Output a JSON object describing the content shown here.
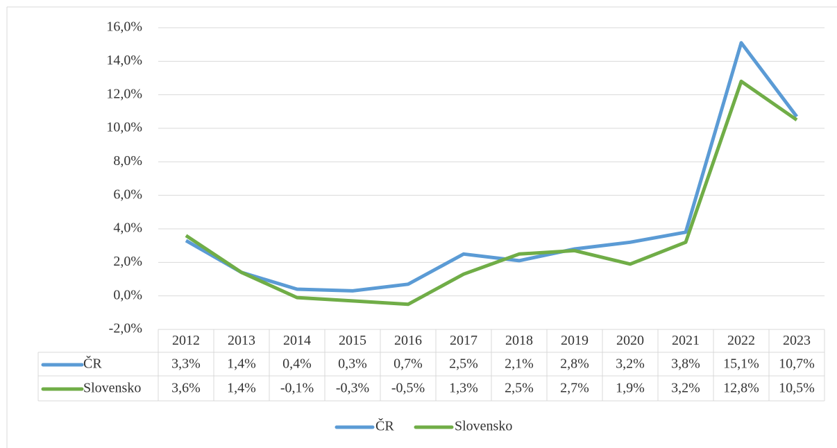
{
  "chart_data": {
    "type": "line",
    "categories": [
      "2012",
      "2013",
      "2014",
      "2015",
      "2016",
      "2017",
      "2018",
      "2019",
      "2020",
      "2021",
      "2022",
      "2023"
    ],
    "series": [
      {
        "name": "ČR",
        "color": "#5b9bd5",
        "values": [
          3.3,
          1.4,
          0.4,
          0.3,
          0.7,
          2.5,
          2.1,
          2.8,
          3.2,
          3.8,
          15.1,
          10.7
        ],
        "value_labels": [
          "3,3%",
          "1,4%",
          "0,4%",
          "0,3%",
          "0,7%",
          "2,5%",
          "2,1%",
          "2,8%",
          "3,2%",
          "3,8%",
          "15,1%",
          "10,7%"
        ]
      },
      {
        "name": "Slovensko",
        "color": "#70ad47",
        "values": [
          3.6,
          1.4,
          -0.1,
          -0.3,
          -0.5,
          1.3,
          2.5,
          2.7,
          1.9,
          3.2,
          12.8,
          10.5
        ],
        "value_labels": [
          "3,6%",
          "1,4%",
          "-0,1%",
          "-0,3%",
          "-0,5%",
          "1,3%",
          "2,5%",
          "2,7%",
          "1,9%",
          "3,2%",
          "12,8%",
          "10,5%"
        ]
      }
    ],
    "ylim": [
      -2,
      16
    ],
    "yticks": [
      {
        "value": -2,
        "label": "-2,0%"
      },
      {
        "value": 0,
        "label": "0,0%"
      },
      {
        "value": 2,
        "label": "2,0%"
      },
      {
        "value": 4,
        "label": "4,0%"
      },
      {
        "value": 6,
        "label": "6,0%"
      },
      {
        "value": 8,
        "label": "8,0%"
      },
      {
        "value": 10,
        "label": "10,0%"
      },
      {
        "value": 12,
        "label": "12,0%"
      },
      {
        "value": 14,
        "label": "14,0%"
      },
      {
        "value": 16,
        "label": "16,0%"
      }
    ],
    "grid": true,
    "legend": "bottom"
  }
}
